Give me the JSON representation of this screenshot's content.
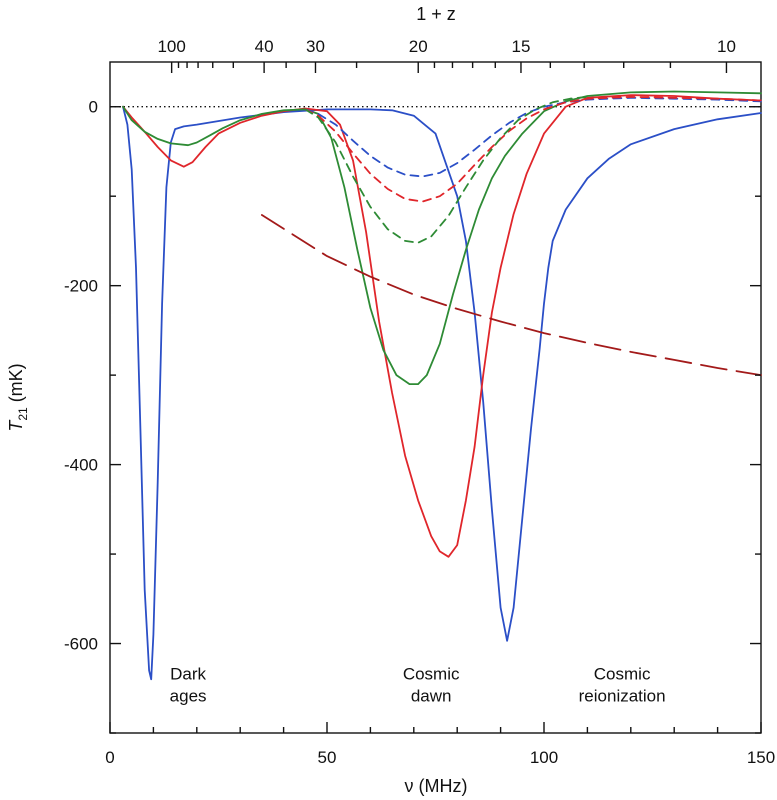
{
  "chart_data": {
    "type": "line",
    "title": "",
    "xlabel": "ν (MHz)",
    "ylabel": "T21 (mK)",
    "ylabel_main": "T",
    "ylabel_sub": "21",
    "ylabel_unit": " (mK)",
    "top_axis_label": "1 + z",
    "xlim": [
      0,
      150
    ],
    "ylim": [
      -700,
      50
    ],
    "grid": false,
    "legend": "none",
    "x_ticks": [
      0,
      50,
      100,
      150
    ],
    "x_tick_labels": [
      "0",
      "50",
      "100",
      "150"
    ],
    "y_ticks": [
      0,
      -200,
      -400,
      -600
    ],
    "y_tick_labels": [
      "0",
      "-200",
      "-400",
      "-600"
    ],
    "top_ticks": [
      {
        "label": "100",
        "value": 100
      },
      {
        "label": "40",
        "value": 40
      },
      {
        "label": "30",
        "value": 30
      },
      {
        "label": "20",
        "value": 20
      },
      {
        "label": "15",
        "value": 15
      },
      {
        "label": "10",
        "value": 10
      }
    ],
    "top_minor_ticks": [
      90,
      80,
      70,
      60,
      50,
      35,
      25,
      19,
      18,
      17,
      16,
      14,
      13,
      12,
      11
    ],
    "zero_line": {
      "y": 0,
      "style": "dotted"
    },
    "annotations": [
      {
        "lines": [
          "Dark",
          "ages"
        ],
        "x": 18,
        "y": -640
      },
      {
        "lines": [
          "Cosmic",
          "dawn"
        ],
        "x": 74,
        "y": -640
      },
      {
        "lines": [
          "Cosmic",
          "reionization"
        ],
        "x": 118,
        "y": -640
      }
    ],
    "series": [
      {
        "color": "#2b4fc7",
        "dash": "solid",
        "x": [
          3,
          4,
          5,
          6,
          7,
          8,
          9,
          9.5,
          10,
          11,
          12,
          13,
          14,
          15,
          17,
          20,
          30,
          40,
          50,
          60,
          65,
          70,
          75,
          80,
          82,
          84,
          86,
          88,
          90,
          91.5,
          93,
          95,
          97,
          99,
          100,
          101,
          102,
          105,
          110,
          115,
          120,
          130,
          140,
          150
        ],
        "y": [
          0,
          -20,
          -70,
          -180,
          -360,
          -540,
          -630,
          -640,
          -590,
          -420,
          -220,
          -90,
          -40,
          -25,
          -22,
          -20,
          -12,
          -6,
          -3,
          -3,
          -4,
          -10,
          -30,
          -100,
          -150,
          -230,
          -330,
          -450,
          -560,
          -597,
          -560,
          -460,
          -360,
          -270,
          -220,
          -180,
          -150,
          -115,
          -80,
          -58,
          -42,
          -25,
          -14,
          -7
        ]
      },
      {
        "color": "#e0262b",
        "dash": "solid",
        "x": [
          3,
          5,
          8,
          11,
          14,
          17,
          19,
          22,
          25,
          30,
          35,
          40,
          45,
          50,
          53,
          56,
          59,
          62,
          65,
          68,
          71,
          74,
          76,
          78,
          80,
          82,
          84,
          86,
          88,
          90,
          93,
          96,
          100,
          105,
          110,
          120,
          130,
          140,
          150
        ],
        "y": [
          0,
          -12,
          -28,
          -45,
          -60,
          -67,
          -62,
          -45,
          -30,
          -18,
          -10,
          -5,
          -2,
          -5,
          -20,
          -60,
          -140,
          -240,
          -320,
          -390,
          -440,
          -480,
          -497,
          -503,
          -490,
          -440,
          -380,
          -300,
          -230,
          -180,
          -120,
          -75,
          -30,
          0,
          10,
          13,
          12,
          9,
          7
        ]
      },
      {
        "color": "#2e8b35",
        "dash": "solid",
        "x": [
          3,
          5,
          8,
          11,
          14,
          18,
          20,
          23,
          26,
          30,
          35,
          40,
          45,
          48,
          51,
          54,
          57,
          60,
          63,
          66,
          69,
          71,
          73,
          76,
          79,
          82,
          85,
          88,
          91,
          95,
          100,
          105,
          110,
          120,
          130,
          140,
          150
        ],
        "y": [
          0,
          -15,
          -28,
          -36,
          -41,
          -43,
          -40,
          -32,
          -24,
          -15,
          -8,
          -4,
          -3,
          -8,
          -35,
          -90,
          -160,
          -225,
          -272,
          -300,
          -310,
          -310,
          -300,
          -265,
          -210,
          -160,
          -115,
          -80,
          -55,
          -30,
          -5,
          6,
          12,
          16,
          17,
          16,
          15
        ]
      },
      {
        "color": "#2b4fc7",
        "dash": "8 6",
        "x": [
          45,
          48,
          52,
          56,
          60,
          64,
          68,
          72,
          76,
          80,
          84,
          88,
          92,
          96,
          100,
          105,
          110,
          120,
          130,
          140,
          150
        ],
        "y": [
          -3,
          -8,
          -20,
          -38,
          -55,
          -68,
          -76,
          -78,
          -74,
          -63,
          -48,
          -32,
          -18,
          -7,
          0,
          5,
          8,
          10,
          9,
          8,
          6
        ]
      },
      {
        "color": "#e0262b",
        "dash": "8 6",
        "x": [
          45,
          48,
          52,
          56,
          60,
          64,
          68,
          72,
          76,
          80,
          84,
          88,
          92,
          96,
          100,
          105,
          110,
          120,
          130,
          140,
          150
        ],
        "y": [
          -3,
          -10,
          -28,
          -52,
          -75,
          -92,
          -103,
          -106,
          -100,
          -86,
          -65,
          -45,
          -27,
          -13,
          -3,
          5,
          9,
          11,
          10,
          9,
          7
        ]
      },
      {
        "color": "#2e8b35",
        "dash": "8 6",
        "x": [
          45,
          48,
          52,
          56,
          60,
          64,
          68,
          71,
          74,
          78,
          82,
          86,
          90,
          94,
          98,
          102,
          106,
          110
        ],
        "y": [
          -3,
          -12,
          -40,
          -78,
          -112,
          -137,
          -150,
          -152,
          -145,
          -122,
          -90,
          -60,
          -35,
          -15,
          -3,
          5,
          9,
          11
        ]
      },
      {
        "color": "#a31a1a",
        "dash": "26 10",
        "x": [
          35,
          50,
          60,
          70,
          80,
          90,
          100,
          110,
          120,
          130,
          140,
          150
        ],
        "y": [
          -121,
          -167,
          -190,
          -210,
          -226,
          -240,
          -253,
          -264,
          -274,
          -283,
          -292,
          -300
        ]
      }
    ]
  }
}
